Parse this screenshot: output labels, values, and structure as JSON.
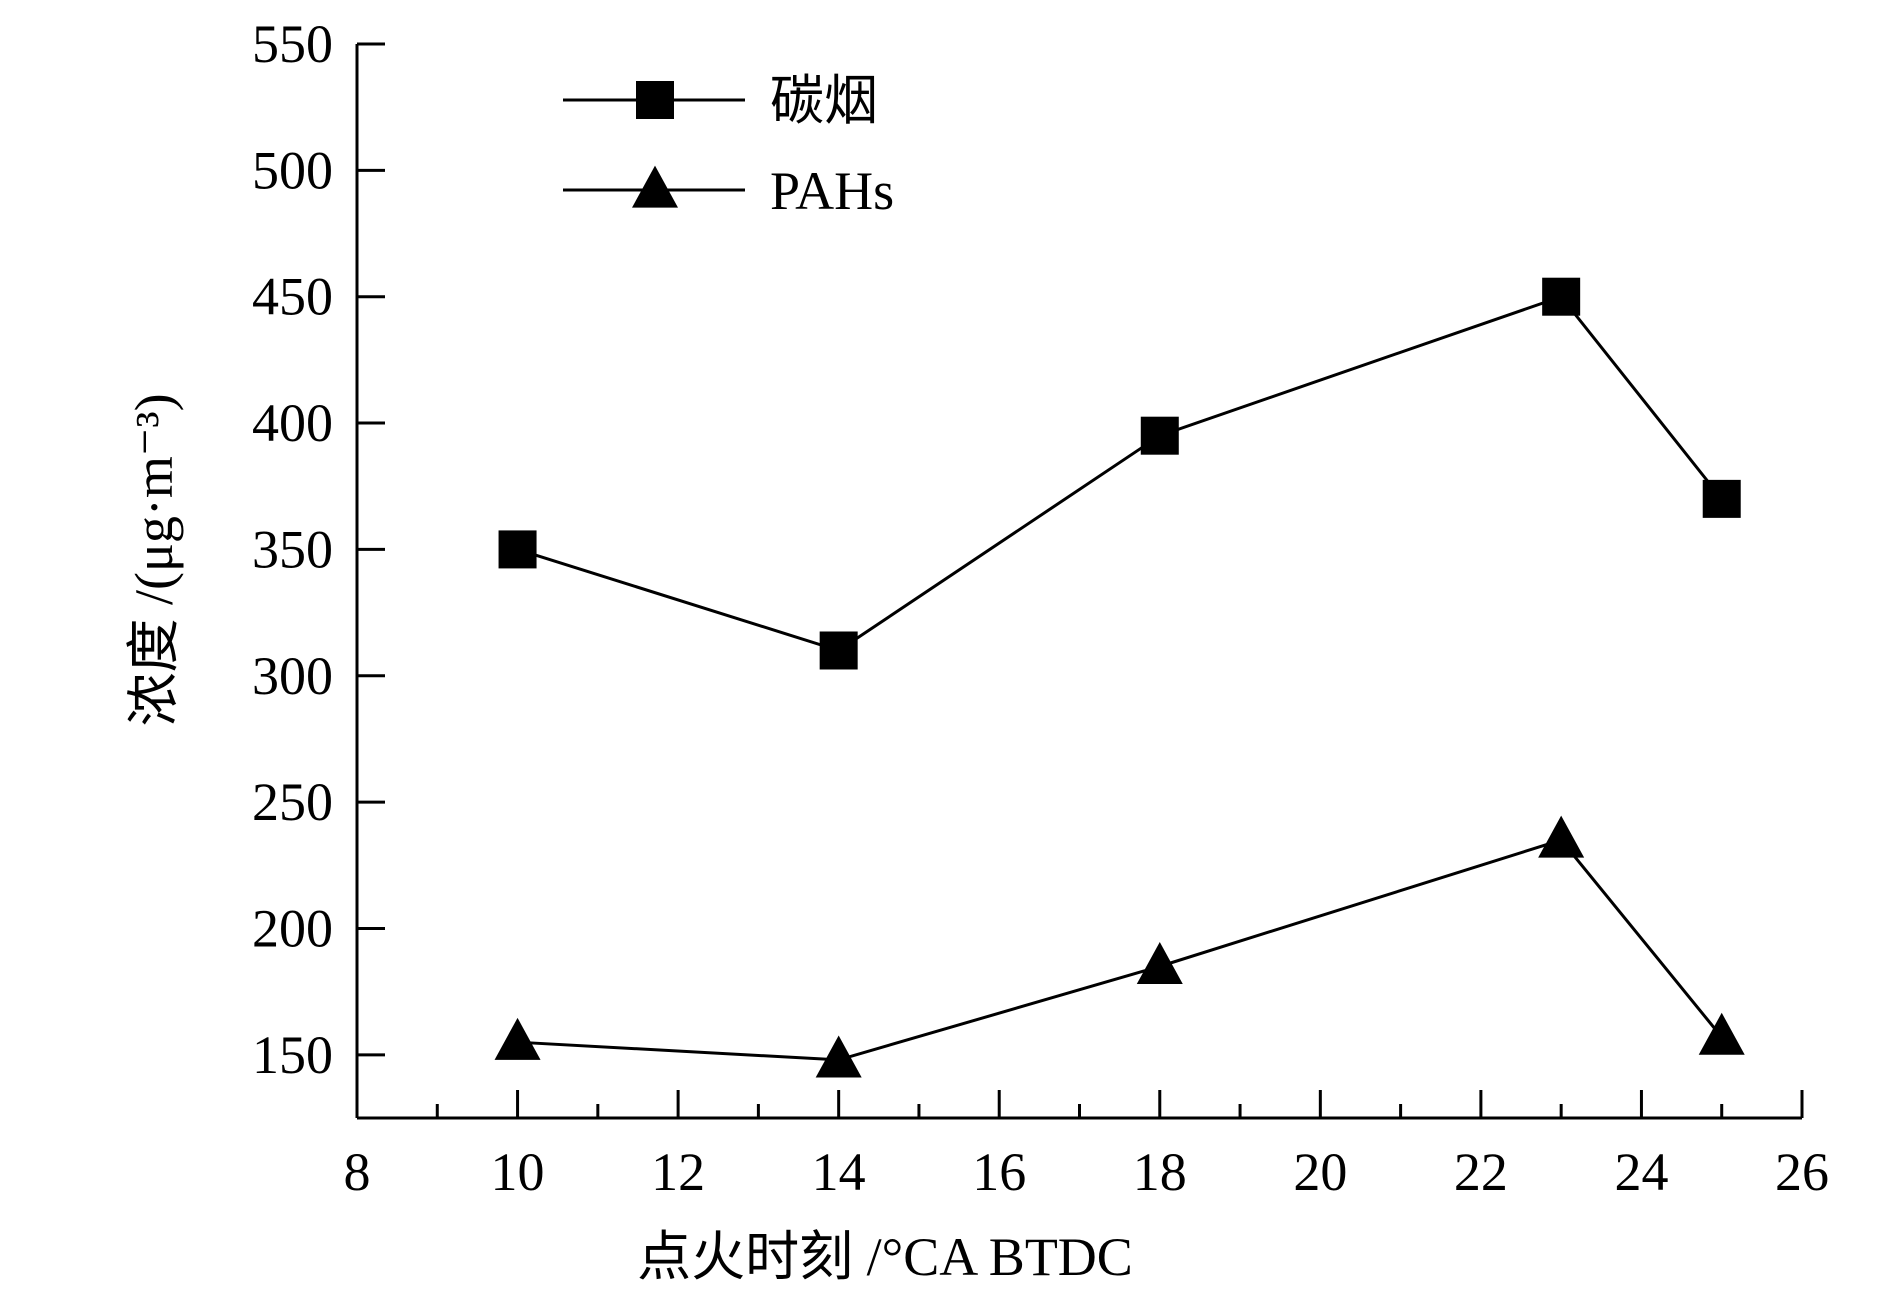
{
  "chart_data": {
    "type": "line",
    "xlabel": "点火时刻 /°CA BTDC",
    "ylabel": "浓度 /(μg·m⁻³)",
    "xlim": [
      8,
      26
    ],
    "ylim": [
      125,
      550
    ],
    "x_ticks": [
      8,
      10,
      12,
      14,
      16,
      18,
      20,
      22,
      24,
      26
    ],
    "y_ticks": [
      150,
      200,
      250,
      300,
      350,
      400,
      450,
      500,
      550
    ],
    "grid": false,
    "legend_position": "top-left",
    "series": [
      {
        "name": "碳烟",
        "marker": "square",
        "x": [
          10,
          14,
          18,
          23,
          25
        ],
        "y": [
          350,
          310,
          395,
          450,
          370
        ]
      },
      {
        "name": "PAHs",
        "marker": "triangle",
        "x": [
          10,
          14,
          18,
          23,
          25
        ],
        "y": [
          155,
          148,
          185,
          235,
          157
        ]
      }
    ]
  }
}
